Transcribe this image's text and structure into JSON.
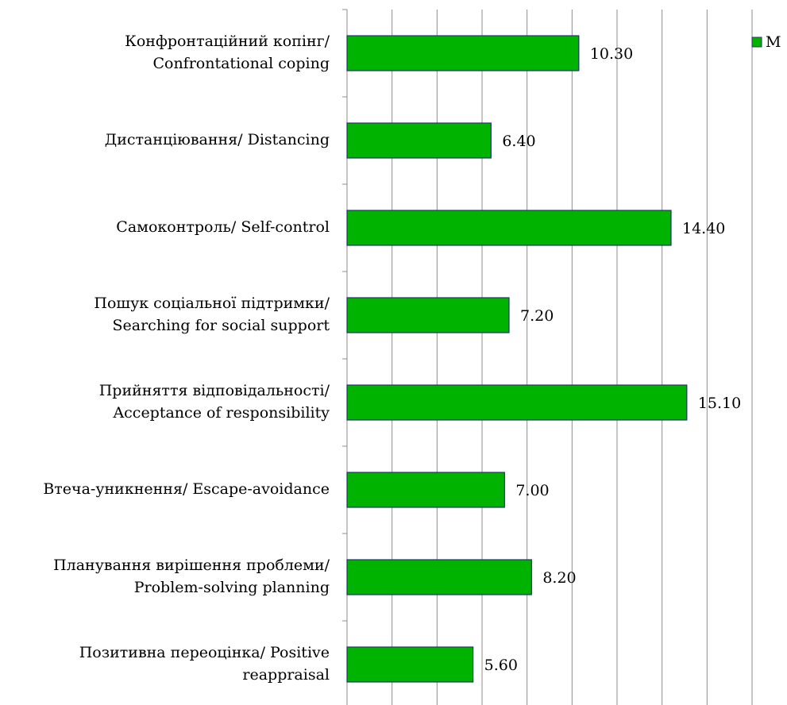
{
  "chart_data": {
    "type": "bar",
    "orientation": "horizontal",
    "categories": [
      "Конфронтаційний копінг/\nConfrontational coping",
      "Дистанціювання/ Distancing",
      "Самоконтроль/ Self-control",
      "Пошук соціальної підтримки/\nSearching for social support",
      "Прийняття відповідальності/\nAcceptance of responsibility",
      "Втеча-уникнення/ Escape-avoidance",
      "Планування вирішення проблеми/\nProblem-solving planning",
      "Позитивна переоцінка/ Positive\nreappraisal"
    ],
    "series": [
      {
        "name": "M",
        "color": "#00b300",
        "values": [
          10.3,
          6.4,
          14.4,
          7.2,
          15.1,
          7.0,
          8.2,
          5.6
        ],
        "value_labels": [
          "10.30",
          "6.40",
          "14.40",
          "7.20",
          "15.10",
          "7.00",
          "8.20",
          "5.60"
        ]
      }
    ],
    "xlim": [
      0,
      18
    ],
    "xticks": [
      0,
      2,
      4,
      6,
      8,
      10,
      12,
      14,
      16,
      18
    ],
    "grid": true,
    "legend": "top-right"
  }
}
